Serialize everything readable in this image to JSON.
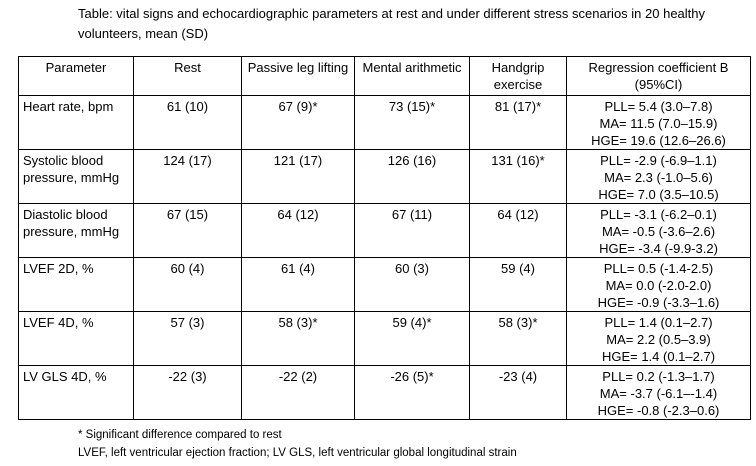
{
  "title": "Table: vital signs and echocardiographic parameters at rest and under different stress scenarios in 20 healthy volunteers, mean (SD)",
  "headers": [
    "Parameter",
    "Rest",
    "Passive leg lifting",
    "Mental arithmetic",
    "Handgrip exercise",
    "Regression coefficient B (95%CI)"
  ],
  "rows": [
    {
      "param": "Heart rate, bpm",
      "rest": "61 (10)",
      "pll": "67 (9)*",
      "ma": "73 (15)*",
      "hge": "81 (17)*",
      "reg": [
        "PLL= 5.4 (3.0–7.8)",
        "MA= 11.5 (7.0–15.9)",
        "HGE= 19.6 (12.6–26.6)"
      ]
    },
    {
      "param": "Systolic blood pressure, mmHg",
      "rest": "124 (17)",
      "pll": "121 (17)",
      "ma": "126 (16)",
      "hge": "131 (16)*",
      "reg": [
        "PLL= -2.9 (-6.9–1.1)",
        "MA= 2.3 (-1.0–5.6)",
        "HGE= 7.0 (3.5–10.5)"
      ]
    },
    {
      "param": "Diastolic blood pressure, mmHg",
      "rest": "67 (15)",
      "pll": "64 (12)",
      "ma": "67 (11)",
      "hge": "64 (12)",
      "reg": [
        "PLL= -3.1 (-6.2–0.1)",
        "MA= -0.5 (-3.6–2.6)",
        "HGE= -3.4 (-9.9-3.2)"
      ]
    },
    {
      "param": "LVEF 2D, %",
      "rest": "60 (4)",
      "pll": "61 (4)",
      "ma": "60 (3)",
      "hge": "59 (4)",
      "reg": [
        "PLL= 0.5 (-1.4-2.5)",
        "MA= 0.0 (-2.0-2.0)",
        "HGE= -0.9 (-3.3–1.6)"
      ]
    },
    {
      "param": "LVEF 4D, %",
      "rest": "57 (3)",
      "pll": "58 (3)*",
      "ma": "59 (4)*",
      "hge": "58 (3)*",
      "reg": [
        "PLL= 1.4 (0.1–2.7)",
        "MA= 2.2 (0.5–3.9)",
        "HGE= 1.4 (0.1–2.7)"
      ]
    },
    {
      "param": "LV GLS 4D, %",
      "rest": "-22 (3)",
      "pll": "-22 (2)",
      "ma": "-26 (5)*",
      "hge": "-23 (4)",
      "reg": [
        "PLL= 0.2 (-1.3–1.7)",
        "MA= -3.7 (-6.1–-1.4)",
        "HGE= -0.8 (-2.3–0.6)"
      ]
    }
  ],
  "footnote1": "* Significant difference compared to rest",
  "footnote2": "LVEF, left ventricular ejection fraction; LV GLS, left ventricular global longitudinal strain"
}
